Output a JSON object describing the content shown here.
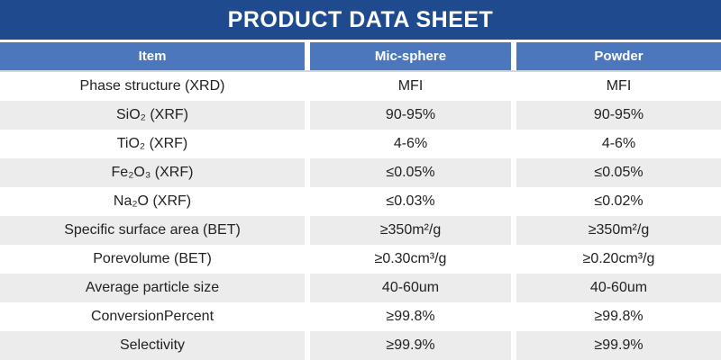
{
  "title": "PRODUCT DATA SHEET",
  "colors": {
    "title_bar": "#1f4b8e",
    "header_row": "#4c77bc",
    "alt_row": "#ececec",
    "text": "#222222"
  },
  "table": {
    "columns": [
      "Item",
      "Mic-sphere",
      "Powder"
    ],
    "rows": [
      {
        "item": "Phase structure (XRD)",
        "mic": "MFI",
        "powder": "MFI"
      },
      {
        "item": "SiO₂ (XRF)",
        "mic": "90-95%",
        "powder": "90-95%"
      },
      {
        "item": "TiO₂ (XRF)",
        "mic": "4-6%",
        "powder": "4-6%"
      },
      {
        "item": "Fe₂O₃ (XRF)",
        "mic": "≤0.05%",
        "powder": "≤0.05%"
      },
      {
        "item": "Na₂O (XRF)",
        "mic": "≤0.03%",
        "powder": "≤0.02%"
      },
      {
        "item": "Specific surface area (BET)",
        "mic": "≥350m²/g",
        "powder": "≥350m²/g"
      },
      {
        "item": "Porevolume (BET)",
        "mic": "≥0.30cm³/g",
        "powder": "≥0.20cm³/g"
      },
      {
        "item": "Average particle size",
        "mic": "40-60um",
        "powder": "40-60um"
      },
      {
        "item": "ConversionPercent",
        "mic": "≥99.8%",
        "powder": "≥99.8%"
      },
      {
        "item": "Selectivity",
        "mic": "≥99.9%",
        "powder": "≥99.9%"
      }
    ]
  }
}
